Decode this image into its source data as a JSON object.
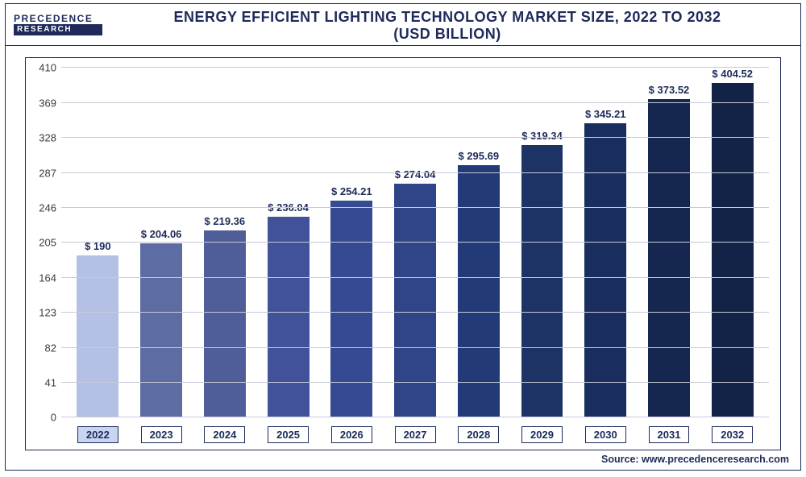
{
  "logo": {
    "line1": "PRECEDENCE",
    "line2": "RESEARCH"
  },
  "title_line1": "ENERGY EFFICIENT LIGHTING TECHNOLOGY MARKET SIZE, 2022 TO 2032",
  "title_line2": "(USD BILLION)",
  "chart": {
    "type": "bar",
    "ylim": [
      0,
      410
    ],
    "yticks": [
      0,
      41,
      82,
      123,
      164,
      205,
      246,
      287,
      328,
      369,
      410
    ],
    "grid_color": "#c7cbd6",
    "plot_border_color": "#1e2a5a",
    "highlight_first_xtick": true,
    "categories": [
      "2022",
      "2023",
      "2024",
      "2025",
      "2026",
      "2027",
      "2028",
      "2029",
      "2030",
      "2031",
      "2032"
    ],
    "values": [
      190,
      204.06,
      219.36,
      236.04,
      254.21,
      274.04,
      295.69,
      319.34,
      345.21,
      373.52,
      404.52
    ],
    "value_labels": [
      "$ 190",
      "$ 204.06",
      "$ 219.36",
      "$ 236.04",
      "$ 254.21",
      "$ 274.04",
      "$ 295.69",
      "$ 319.34",
      "$ 345.21",
      "$ 373.52",
      "$ 404.52"
    ],
    "bar_colors": [
      "#b4c0e4",
      "#5d6ca3",
      "#4f5d98",
      "#41529a",
      "#364a93",
      "#2f4587",
      "#233a78",
      "#1d3366",
      "#192d5e",
      "#152751",
      "#122347"
    ],
    "title_color": "#1e2a5a",
    "title_fontsize": 18,
    "label_fontsize": 13,
    "background_color": "#ffffff"
  },
  "source": "Source: www.precedenceresearch.com"
}
